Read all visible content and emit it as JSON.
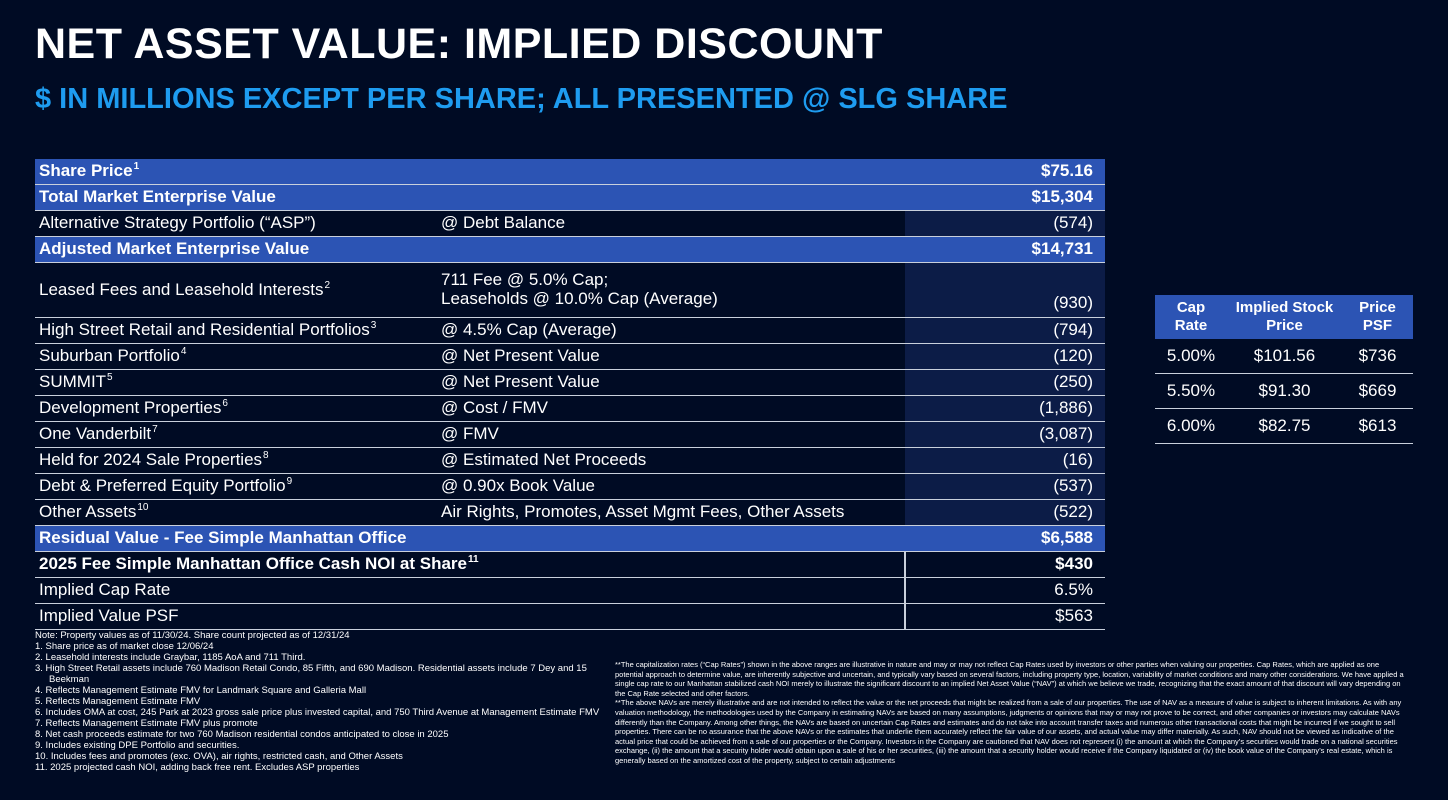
{
  "title": "NET ASSET VALUE: IMPLIED DISCOUNT",
  "subtitle": "$ IN MILLIONS EXCEPT PER SHARE; ALL PRESENTED @ SLG SHARE",
  "main_table": {
    "rows": [
      {
        "label": "Share Price",
        "sup": "1",
        "method": "",
        "method2": "",
        "value": "$75.16"
      },
      {
        "label": "Total Market Enterprise Value",
        "sup": "",
        "method": "",
        "method2": "",
        "value": "$15,304"
      },
      {
        "label": "Alternative Strategy Portfolio (“ASP”)",
        "sup": "",
        "method": "@ Debt Balance",
        "method2": "",
        "value": "(574)"
      },
      {
        "label": "Adjusted Market Enterprise Value",
        "sup": "",
        "method": "",
        "method2": "",
        "value": "$14,731"
      },
      {
        "label": "Leased Fees and Leasehold Interests",
        "sup": "2",
        "method": "711 Fee @ 5.0% Cap;",
        "method2": "Leaseholds @ 10.0% Cap (Average)",
        "value": "(930)"
      },
      {
        "label": "High Street Retail and Residential Portfolios",
        "sup": "3",
        "method": "@ 4.5% Cap (Average)",
        "method2": "",
        "value": "(794)"
      },
      {
        "label": "Suburban Portfolio",
        "sup": "4",
        "method": "@ Net Present Value",
        "method2": "",
        "value": "(120)"
      },
      {
        "label": "SUMMIT",
        "sup": "5",
        "method": "@ Net Present Value",
        "method2": "",
        "value": "(250)"
      },
      {
        "label": "Development Properties",
        "sup": "6",
        "method": "@ Cost / FMV",
        "method2": "",
        "value": "(1,886)"
      },
      {
        "label": "One Vanderbilt",
        "sup": "7",
        "method": "@ FMV",
        "method2": "",
        "value": "(3,087)"
      },
      {
        "label": "Held for 2024 Sale Properties",
        "sup": "8",
        "method": "@ Estimated Net Proceeds",
        "method2": "",
        "value": "(16)"
      },
      {
        "label": "Debt & Preferred Equity Portfolio",
        "sup": "9",
        "method": "@ 0.90x Book Value",
        "method2": "",
        "value": "(537)"
      },
      {
        "label": "Other Assets",
        "sup": "10",
        "method": "Air Rights, Promotes, Asset Mgmt Fees, Other Assets",
        "method2": "",
        "value": "(522)"
      },
      {
        "label": "Residual Value - Fee Simple Manhattan Office",
        "sup": "",
        "method": "",
        "method2": "",
        "value": "$6,588"
      },
      {
        "label": "2025 Fee Simple Manhattan Office Cash NOI at Share",
        "sup": "11",
        "method": "",
        "method2": "",
        "value": "$430"
      },
      {
        "label": "Implied Cap Rate",
        "sup": "",
        "method": "",
        "method2": "",
        "value": "6.5%"
      },
      {
        "label": "Implied Value PSF",
        "sup": "",
        "method": "",
        "method2": "",
        "value": "$563"
      }
    ]
  },
  "side_table": {
    "headers": [
      {
        "line1": "Cap",
        "line2": "Rate"
      },
      {
        "line1": "Implied Stock",
        "line2": "Price"
      },
      {
        "line1": "Price",
        "line2": "PSF"
      }
    ],
    "rows": [
      {
        "cap": "5.00%",
        "price": "$101.56",
        "psf": "$736"
      },
      {
        "cap": "5.50%",
        "price": "$91.30",
        "psf": "$669"
      },
      {
        "cap": "6.00%",
        "price": "$82.75",
        "psf": "$613"
      }
    ]
  },
  "notes_left": {
    "intro": "Note: Property values as of 11/30/24. Share count projected as of 12/31/24",
    "items": [
      "1.  Share price as of market close 12/06/24",
      "2.  Leasehold interests include Graybar, 1185 AoA and 711 Third.",
      "3.  High Street Retail assets include 760 Madison Retail Condo, 85 Fifth, and 690 Madison. Residential assets include 7 Dey and 15 Beekman",
      "4.  Reflects Management Estimate FMV for Landmark Square and Galleria Mall",
      "5.  Reflects Management Estimate FMV",
      "6.  Includes OMA at cost, 245 Park at 2023 gross sale price plus invested capital, and 750 Third Avenue at Management Estimate FMV",
      "7.  Reflects Management Estimate FMV plus promote",
      "8.  Net cash proceeds estimate for two 760 Madison residential condos anticipated to close in 2025",
      "9.  Includes existing DPE Portfolio and securities.",
      "10. Includes fees and promotes (exc. OVA), air rights, restricted cash, and Other Assets",
      "11. 2025 projected cash NOI, adding back free rent. Excludes ASP properties"
    ]
  },
  "notes_right": {
    "para1": "**The capitalization rates (“Cap Rates”) shown in the above ranges are illustrative in nature and may or may not reflect Cap Rates used by investors or other parties when valuing our properties. Cap Rates, which are applied as one potential approach to determine value, are inherently subjective and uncertain, and typically vary based on several factors, including property type, location, variability of market conditions and many other considerations. We have applied a single cap rate to our Manhattan stabilized cash NOI merely to illustrate the significant discount to an implied Net Asset Value (“NAV”) at which we believe we trade, recognizing that the exact amount of that discount will vary depending on the Cap Rate selected and other factors.",
    "para2": "**The above NAVs are merely illustrative and are not intended to reflect the value or the net proceeds that might be realized from a sale of our properties. The use of NAV as a measure of value is subject to inherent limitations. As with any valuation methodology, the methodologies used by the Company in estimating NAVs are based on many assumptions, judgments or opinions that may or may not prove to be correct, and other companies or investors may calculate NAVs differently than the Company. Among other things, the NAVs are based on uncertain Cap Rates and estimates and do not take into account transfer taxes and numerous other transactional costs that might be incurred if we sought to sell properties. There can be no assurance that the above NAVs or the estimates that underlie them accurately reflect the fair value of our assets, and actual value may differ materially. As such, NAV should not be viewed as indicative of the actual price that could be achieved from a sale of our properties or the Company. Investors in the Company are cautioned that NAV does not represent (i) the amount at which the Company’s securities would trade on a national securities exchange, (ii) the amount that a security holder would obtain upon a sale of his or her securities, (iii) the amount that a security holder would receive if the Company liquidated or (iv) the book value of the Company’s real estate, which is generally based on the amortized cost of the property, subject to certain adjustments"
  },
  "colors": {
    "background": "#000b24",
    "accent_blue": "#1e9cf0",
    "highlight_row": "#2c54b4",
    "value_column": "#0c1c47"
  }
}
